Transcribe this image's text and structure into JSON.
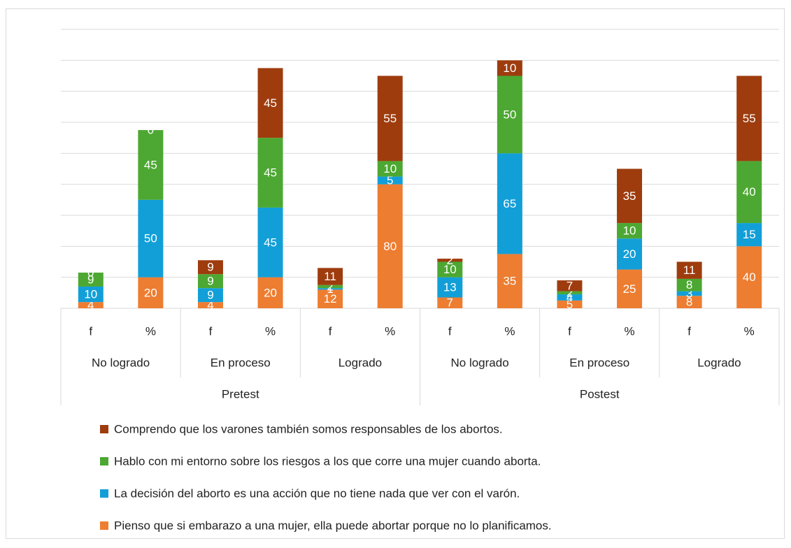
{
  "chart_data": {
    "type": "bar",
    "stacked": true,
    "categories": [
      "f",
      "%",
      "f",
      "%",
      "f",
      "%",
      "f",
      "%",
      "f",
      "%",
      "f",
      "%"
    ],
    "groups": [
      "No logrado",
      "En proceso",
      "Logrado",
      "No logrado",
      "En proceso",
      "Logrado"
    ],
    "supergroups": [
      "Pretest",
      "Postest"
    ],
    "series": [
      {
        "name": "Pienso que si embarazo a una mujer, ella puede abortar porque no lo planificamos.",
        "color": "#ed7d31",
        "values": [
          4,
          20,
          4,
          20,
          12,
          80,
          7,
          35,
          5,
          25,
          8,
          40
        ]
      },
      {
        "name": "La decisión del aborto es una acción que no tiene nada que ver con el varón.",
        "color": "#129fd8",
        "values": [
          10,
          50,
          9,
          45,
          1,
          5,
          13,
          65,
          4,
          20,
          3,
          15
        ]
      },
      {
        "name": "Hablo con mi entorno sobre los riesgos a los que corre una mujer cuando aborta.",
        "color": "#4ca832",
        "values": [
          9,
          45,
          9,
          45,
          2,
          10,
          10,
          50,
          2,
          10,
          8,
          40
        ]
      },
      {
        "name": "Comprendo que los varones también somos responsables de los abortos.",
        "color": "#9e3c0e",
        "values": [
          0,
          0,
          9,
          45,
          11,
          55,
          2,
          10,
          7,
          35,
          11,
          55
        ]
      }
    ],
    "ylim": [
      0,
      180
    ],
    "yticks": [
      0,
      20,
      40,
      60,
      80,
      100,
      120,
      140,
      160,
      180
    ],
    "grid": true
  }
}
